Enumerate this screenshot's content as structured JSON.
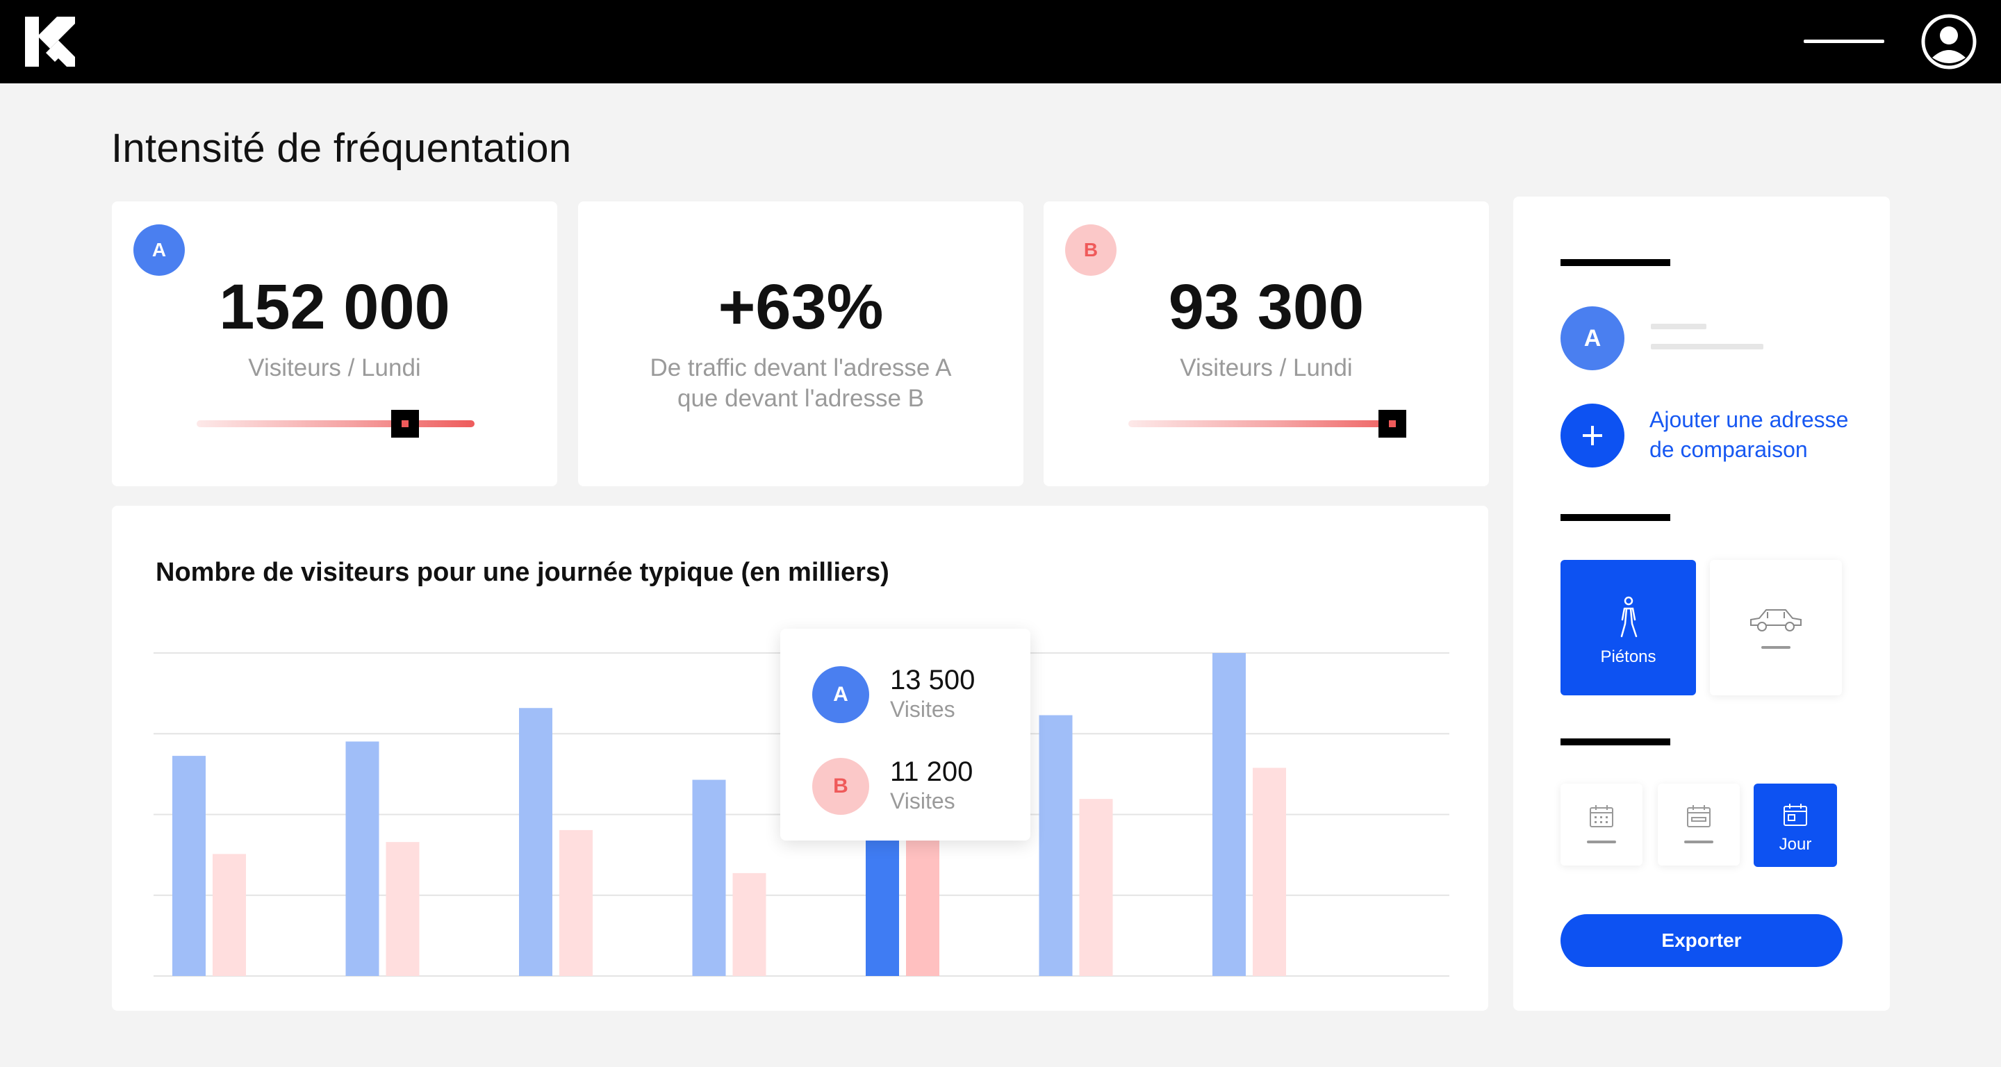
{
  "page_title": "Intensité de fréquentation",
  "colors": {
    "accent": "#0d52f2",
    "series_a": "#4a7ff0",
    "series_b": "#fbc8c8",
    "highlight_a": "#3f7cf3",
    "highlight_b": "#ffc0c0"
  },
  "kpis": [
    {
      "badge": "A",
      "value": "152 000",
      "label": "Visiteurs / Lundi",
      "slider_level": 0.75
    },
    {
      "value": "+63%",
      "label_line1": "De traffic devant l'adresse A",
      "label_line2": "que devant l'adresse B"
    },
    {
      "badge": "B",
      "value": "93 300",
      "label": "Visiteurs / Lundi",
      "slider_level": 0.95
    }
  ],
  "tooltip": {
    "a": {
      "badge": "A",
      "value": "13 500",
      "label": "Visites"
    },
    "b": {
      "badge": "B",
      "value": "11 200",
      "label": "Visites"
    }
  },
  "sidebar": {
    "address_badge": "A",
    "add_comparison": "Ajouter une adresse de comparaison",
    "mode_pedestrians": "Piétons",
    "period_day": "Jour",
    "export": "Exporter",
    "icons": [
      "user-circle-icon",
      "plus-icon",
      "pedestrian-icon",
      "car-icon",
      "calendar-icon"
    ]
  },
  "chart_data": {
    "type": "bar",
    "title": "Nombre de visiteurs pour une journée typique (en milliers)",
    "categories": [
      "",
      "",
      "",
      "",
      "",
      "",
      ""
    ],
    "series": [
      {
        "name": "A",
        "values": [
          9.2,
          9.8,
          11.2,
          8.2,
          13.5,
          10.9,
          13.5
        ]
      },
      {
        "name": "B",
        "values": [
          5.1,
          5.6,
          6.1,
          4.3,
          11.2,
          7.4,
          8.7
        ]
      }
    ],
    "highlight_index": 4,
    "ylim": [
      0,
      13.5
    ],
    "grid": true
  }
}
